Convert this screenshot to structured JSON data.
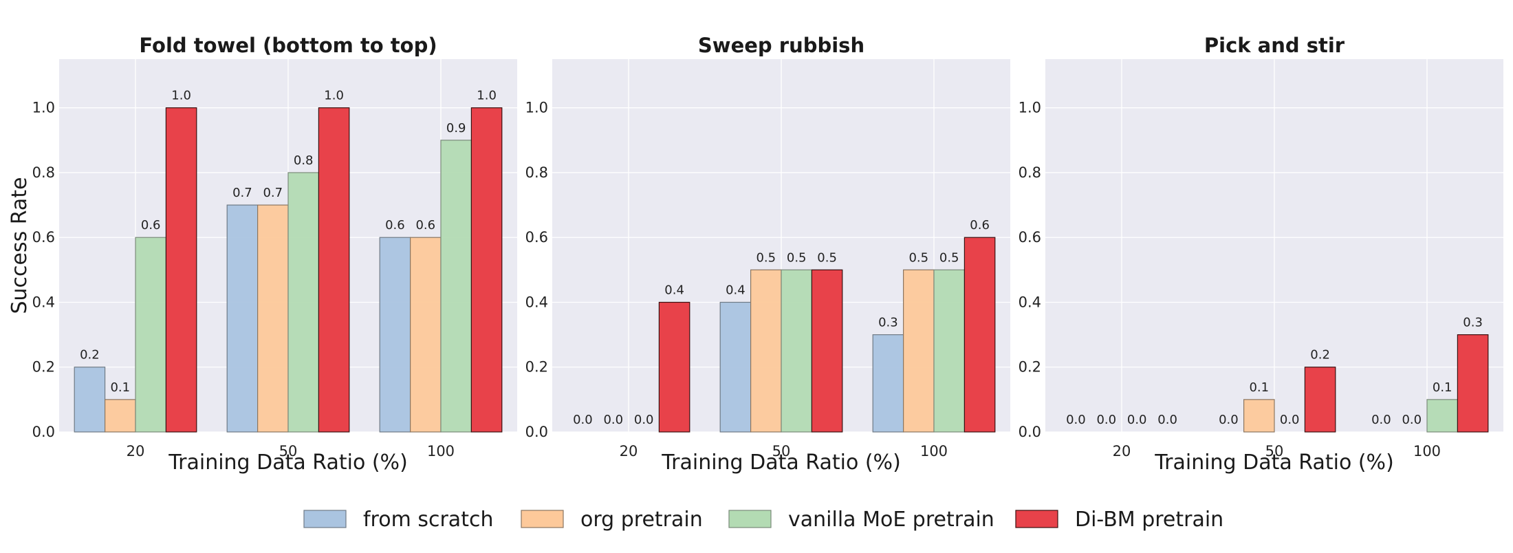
{
  "figure": {
    "ylabel": "Success Rate",
    "xlabel": "Training Data Ratio (%)"
  },
  "legend": {
    "placement": "bottom-center",
    "items": [
      {
        "label": "from scratch",
        "color": "#aac4e0"
      },
      {
        "label": "org pretrain",
        "color": "#fdc99a"
      },
      {
        "label": "vanilla MoE pretrain",
        "color": "#b3dbb3"
      },
      {
        "label": "Di-BM pretrain",
        "color": "#e8424a"
      }
    ]
  },
  "chart_data": [
    {
      "type": "bar",
      "title": "Fold towel (bottom to top)",
      "xlabel": "Training Data Ratio (%)",
      "ylabel": "Success Rate",
      "categories": [
        "20",
        "50",
        "100"
      ],
      "ylim": [
        0,
        1.15
      ],
      "yticks": [
        "0.0",
        "0.2",
        "0.4",
        "0.6",
        "0.8",
        "1.0"
      ],
      "grid": true,
      "series": [
        {
          "name": "from scratch",
          "values": [
            0.2,
            0.7,
            0.6
          ],
          "labels": [
            "0.2",
            "0.7",
            "0.6"
          ]
        },
        {
          "name": "org pretrain",
          "values": [
            0.1,
            0.7,
            0.6
          ],
          "labels": [
            "0.1",
            "0.7",
            "0.6"
          ]
        },
        {
          "name": "vanilla MoE pretrain",
          "values": [
            0.6,
            0.8,
            0.9
          ],
          "labels": [
            "0.6",
            "0.8",
            "0.9"
          ]
        },
        {
          "name": "Di-BM pretrain",
          "values": [
            1.0,
            1.0,
            1.0
          ],
          "labels": [
            "1.0",
            "1.0",
            "1.0"
          ]
        }
      ]
    },
    {
      "type": "bar",
      "title": "Sweep rubbish",
      "xlabel": "Training Data Ratio (%)",
      "ylabel": "",
      "categories": [
        "20",
        "50",
        "100"
      ],
      "ylim": [
        0,
        1.15
      ],
      "yticks": [
        "0.0",
        "0.2",
        "0.4",
        "0.6",
        "0.8",
        "1.0"
      ],
      "grid": true,
      "series": [
        {
          "name": "from scratch",
          "values": [
            0.0,
            0.4,
            0.3
          ],
          "labels": [
            "0.0",
            "0.4",
            "0.3"
          ]
        },
        {
          "name": "org pretrain",
          "values": [
            0.0,
            0.5,
            0.5
          ],
          "labels": [
            "0.0",
            "0.5",
            "0.5"
          ]
        },
        {
          "name": "vanilla MoE pretrain",
          "values": [
            0.0,
            0.5,
            0.5
          ],
          "labels": [
            "0.0",
            "0.5",
            "0.5"
          ]
        },
        {
          "name": "Di-BM pretrain",
          "values": [
            0.4,
            0.5,
            0.6
          ],
          "labels": [
            "0.4",
            "0.5",
            "0.6"
          ]
        }
      ]
    },
    {
      "type": "bar",
      "title": "Pick and stir",
      "xlabel": "Training Data Ratio (%)",
      "ylabel": "",
      "categories": [
        "20",
        "50",
        "100"
      ],
      "ylim": [
        0,
        1.15
      ],
      "yticks": [
        "0.0",
        "0.2",
        "0.4",
        "0.6",
        "0.8",
        "1.0"
      ],
      "grid": true,
      "series": [
        {
          "name": "from scratch",
          "values": [
            0.0,
            0.0,
            0.0
          ],
          "labels": [
            "0.0",
            "0.0",
            "0.0"
          ]
        },
        {
          "name": "org pretrain",
          "values": [
            0.0,
            0.1,
            0.0
          ],
          "labels": [
            "0.0",
            "0.1",
            "0.0"
          ]
        },
        {
          "name": "vanilla MoE pretrain",
          "values": [
            0.0,
            0.0,
            0.1
          ],
          "labels": [
            "0.0",
            "0.0",
            "0.1"
          ]
        },
        {
          "name": "Di-BM pretrain",
          "values": [
            0.0,
            0.2,
            0.3
          ],
          "labels": [
            "0.0",
            "0.2",
            "0.3"
          ]
        }
      ]
    }
  ]
}
